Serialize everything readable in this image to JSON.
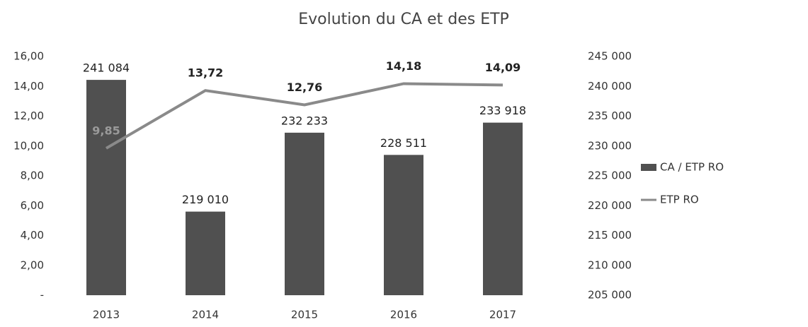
{
  "chart_data": {
    "type": "bar",
    "title": "Evolution du CA et des ETP",
    "categories": [
      "2013",
      "2014",
      "2015",
      "2016",
      "2017"
    ],
    "series": [
      {
        "name": "CA / ETP RO",
        "type": "bar",
        "axis": "y2",
        "color": "#505050",
        "values": [
          241084,
          219010,
          232233,
          228511,
          233918
        ],
        "value_labels": [
          "241 084",
          "219 010",
          "232 233",
          "228 511",
          "233 918"
        ]
      },
      {
        "name": "ETP RO",
        "type": "line",
        "axis": "y",
        "color": "#8a8a8a",
        "values": [
          9.85,
          13.72,
          12.76,
          14.18,
          14.09
        ],
        "value_labels": [
          "9,85",
          "13,72",
          "12,76",
          "14,18",
          "14,09"
        ]
      }
    ],
    "ylim": [
      0,
      16
    ],
    "yticks": [
      {
        "value": 0,
        "label": "-"
      },
      {
        "value": 2,
        "label": "2,00"
      },
      {
        "value": 4,
        "label": "4,00"
      },
      {
        "value": 6,
        "label": "6,00"
      },
      {
        "value": 8,
        "label": "8,00"
      },
      {
        "value": 10,
        "label": "10,00"
      },
      {
        "value": 12,
        "label": "12,00"
      },
      {
        "value": 14,
        "label": "14,00"
      },
      {
        "value": 16,
        "label": "16,00"
      }
    ],
    "y2lim": [
      205000,
      245000
    ],
    "y2ticks": [
      {
        "value": 205000,
        "label": "205 000"
      },
      {
        "value": 210000,
        "label": "210 000"
      },
      {
        "value": 215000,
        "label": "215 000"
      },
      {
        "value": 220000,
        "label": "220 000"
      },
      {
        "value": 225000,
        "label": "225 000"
      },
      {
        "value": 230000,
        "label": "230 000"
      },
      {
        "value": 235000,
        "label": "235 000"
      },
      {
        "value": 240000,
        "label": "240 000"
      },
      {
        "value": 245000,
        "label": "245 000"
      }
    ],
    "legend": "right"
  }
}
